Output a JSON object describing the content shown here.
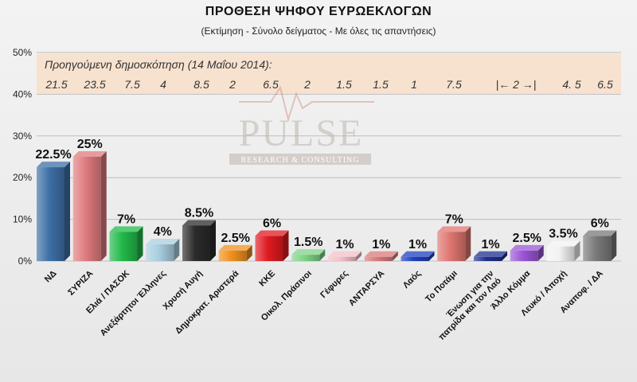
{
  "chart_data": {
    "type": "bar",
    "title": "ΠΡΟΘΕΣΗ ΨΗΦΟΥ ΕΥΡΩΕΚΛΟΓΩΝ",
    "subtitle": "(Εκτίμηση - Σύνολο δείγματος - Με όλες τις απαντήσεις)",
    "ylim": [
      0,
      50
    ],
    "y_ticks": [
      "0%",
      "10%",
      "20%",
      "30%",
      "40%",
      "50%"
    ],
    "grid": true,
    "categories": [
      "ΝΔ",
      "ΣΥΡΙΖΑ",
      "Ελιά / ΠΑΣΟΚ",
      "Ανεξάρτητοι Έλληνες",
      "Χρυσή Αυγή",
      "Δημοκρατ. Αριστερά",
      "ΚΚΕ",
      "Οικολ. Πράσινοι",
      "Γέφυρες",
      "ΑΝΤΑΡΣΥΑ",
      "Λαός",
      "Το Ποτάμι",
      "Ένωση για την πατρίδα και τον Λαό",
      "Άλλο Κόμμα",
      "Λευκό / Αποχή",
      "Αναποφ. / ΔΑ"
    ],
    "values": [
      22.5,
      25,
      7,
      4,
      8.5,
      2.5,
      6,
      1.5,
      1,
      1,
      1,
      7,
      1,
      2.5,
      3.5,
      6
    ],
    "value_labels": [
      "22.5%",
      "25%",
      "7%",
      "4%",
      "8.5%",
      "2.5%",
      "6%",
      "1.5%",
      "1%",
      "1%",
      "1%",
      "7%",
      "1%",
      "2.5%",
      "3.5%",
      "6%"
    ],
    "colors": [
      "#3e6fa6",
      "#e07a7e",
      "#22b94a",
      "#a9cfe0",
      "#2b2b2b",
      "#f0901e",
      "#e01a20",
      "#7fd287",
      "#f3c0c8",
      "#d9797b",
      "#1f3fbf",
      "#df7670",
      "#1d2f8f",
      "#9a55d6",
      "#f2f2f2",
      "#7a7a7a"
    ],
    "previous_poll": {
      "title": "Προηγούμενη δημοσκόπηση  (14 Μαΐου 2014):",
      "values": [
        "21.5",
        "23.5",
        "7.5",
        "4",
        "8.5",
        "2",
        "6.5",
        "2",
        "1.5",
        "1.5",
        "1",
        "7.5",
        "|← 2 →|",
        "4. 5",
        "6.5"
      ]
    },
    "watermark": {
      "brand": "PULSE",
      "tagline": "RESEARCH & CONSULTING"
    }
  }
}
